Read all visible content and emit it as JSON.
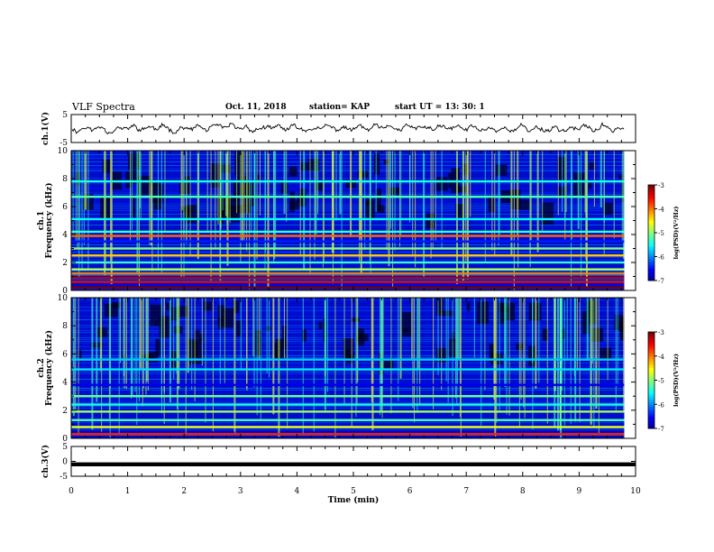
{
  "header": {
    "title": "VLF Spectra",
    "date": "Oct. 11, 2018",
    "station": "station= KAP",
    "start": "start  UT  =   13: 30: 1"
  },
  "chart_data": [
    {
      "type": "line",
      "panel": "ch1-waveform",
      "ylabel": "ch.1(V)",
      "ylim": [
        -5,
        5
      ],
      "yticks": [
        "5",
        "-5"
      ],
      "xlim": [
        0,
        10
      ],
      "data_end_min": 9.8,
      "series": [
        {
          "color": "#000000",
          "description_level": "noisy waveform around 0 V, amplitude about ±2 V"
        }
      ]
    },
    {
      "type": "heatmap",
      "panel": "ch1-spectrogram",
      "ylabel_line1": "ch.1",
      "ylabel_line2": "Frequency  (kHz)",
      "ylim": [
        0,
        10
      ],
      "yticks": [
        "0",
        "2",
        "4",
        "6",
        "8",
        "10"
      ],
      "xlim": [
        0,
        10
      ],
      "data_end_min": 9.8,
      "bands_khz": [
        {
          "freq": 0.2,
          "level": -3.0
        },
        {
          "freq": 0.6,
          "level": -3.4
        },
        {
          "freq": 0.9,
          "level": -3.2
        },
        {
          "freq": 1.2,
          "level": -4.0
        },
        {
          "freq": 1.5,
          "level": -4.8
        },
        {
          "freq": 2.0,
          "level": -5.3
        },
        {
          "freq": 2.5,
          "level": -4.3
        },
        {
          "freq": 3.0,
          "level": -5.0
        },
        {
          "freq": 3.5,
          "level": -6.4
        },
        {
          "freq": 3.9,
          "level": -3.9
        },
        {
          "freq": 4.2,
          "level": -5.3
        },
        {
          "freq": 5.1,
          "level": -5.5
        },
        {
          "freq": 6.7,
          "level": -5.2
        },
        {
          "freq": 7.8,
          "level": -5.4
        }
      ],
      "colorbar": {
        "label": "log(PSD)(V²/Hz)",
        "range": [
          -7,
          -3
        ],
        "ticks": [
          "-3",
          "-4",
          "-5",
          "-6",
          "-7"
        ]
      }
    },
    {
      "type": "heatmap",
      "panel": "ch2-spectrogram",
      "ylabel_line1": "ch.2",
      "ylabel_line2": "Frequency  (kHz)",
      "ylim": [
        0,
        10
      ],
      "yticks": [
        "0",
        "2",
        "4",
        "6",
        "8",
        "10"
      ],
      "xlim": [
        0,
        10
      ],
      "data_end_min": 9.8,
      "bands_khz": [
        {
          "freq": 0.3,
          "level": -3.6
        },
        {
          "freq": 0.8,
          "level": -4.6
        },
        {
          "freq": 1.3,
          "level": -5.2
        },
        {
          "freq": 1.9,
          "level": -4.9
        },
        {
          "freq": 2.4,
          "level": -5.4
        },
        {
          "freq": 3.0,
          "level": -5.1
        },
        {
          "freq": 3.8,
          "level": -6.6
        },
        {
          "freq": 4.9,
          "level": -5.6
        },
        {
          "freq": 5.6,
          "level": -5.7
        }
      ],
      "colorbar": {
        "label": "log(PSD)(V²/Hz)",
        "range": [
          -7,
          -3
        ],
        "ticks": [
          "-3",
          "-4",
          "-5",
          "-6",
          "-7"
        ]
      }
    },
    {
      "type": "line",
      "panel": "ch3-waveform",
      "ylabel": "ch.3(V)",
      "ylim": [
        -5,
        5
      ],
      "yticks": [
        "5",
        "0",
        "-5"
      ],
      "xlim": [
        0,
        10
      ],
      "data_end_min": 9.8,
      "series": [
        {
          "color": "#000000",
          "constant_value": -1
        }
      ]
    }
  ],
  "xaxis": {
    "label": "Time  (min)",
    "ticks": [
      "0",
      "1",
      "2",
      "3",
      "4",
      "5",
      "6",
      "7",
      "8",
      "9",
      "10"
    ]
  },
  "colors": {
    "jet": [
      "#00008f",
      "#0000ff",
      "#0080ff",
      "#00ffff",
      "#80ff80",
      "#ffff00",
      "#ff8000",
      "#ff0000",
      "#800000"
    ]
  }
}
